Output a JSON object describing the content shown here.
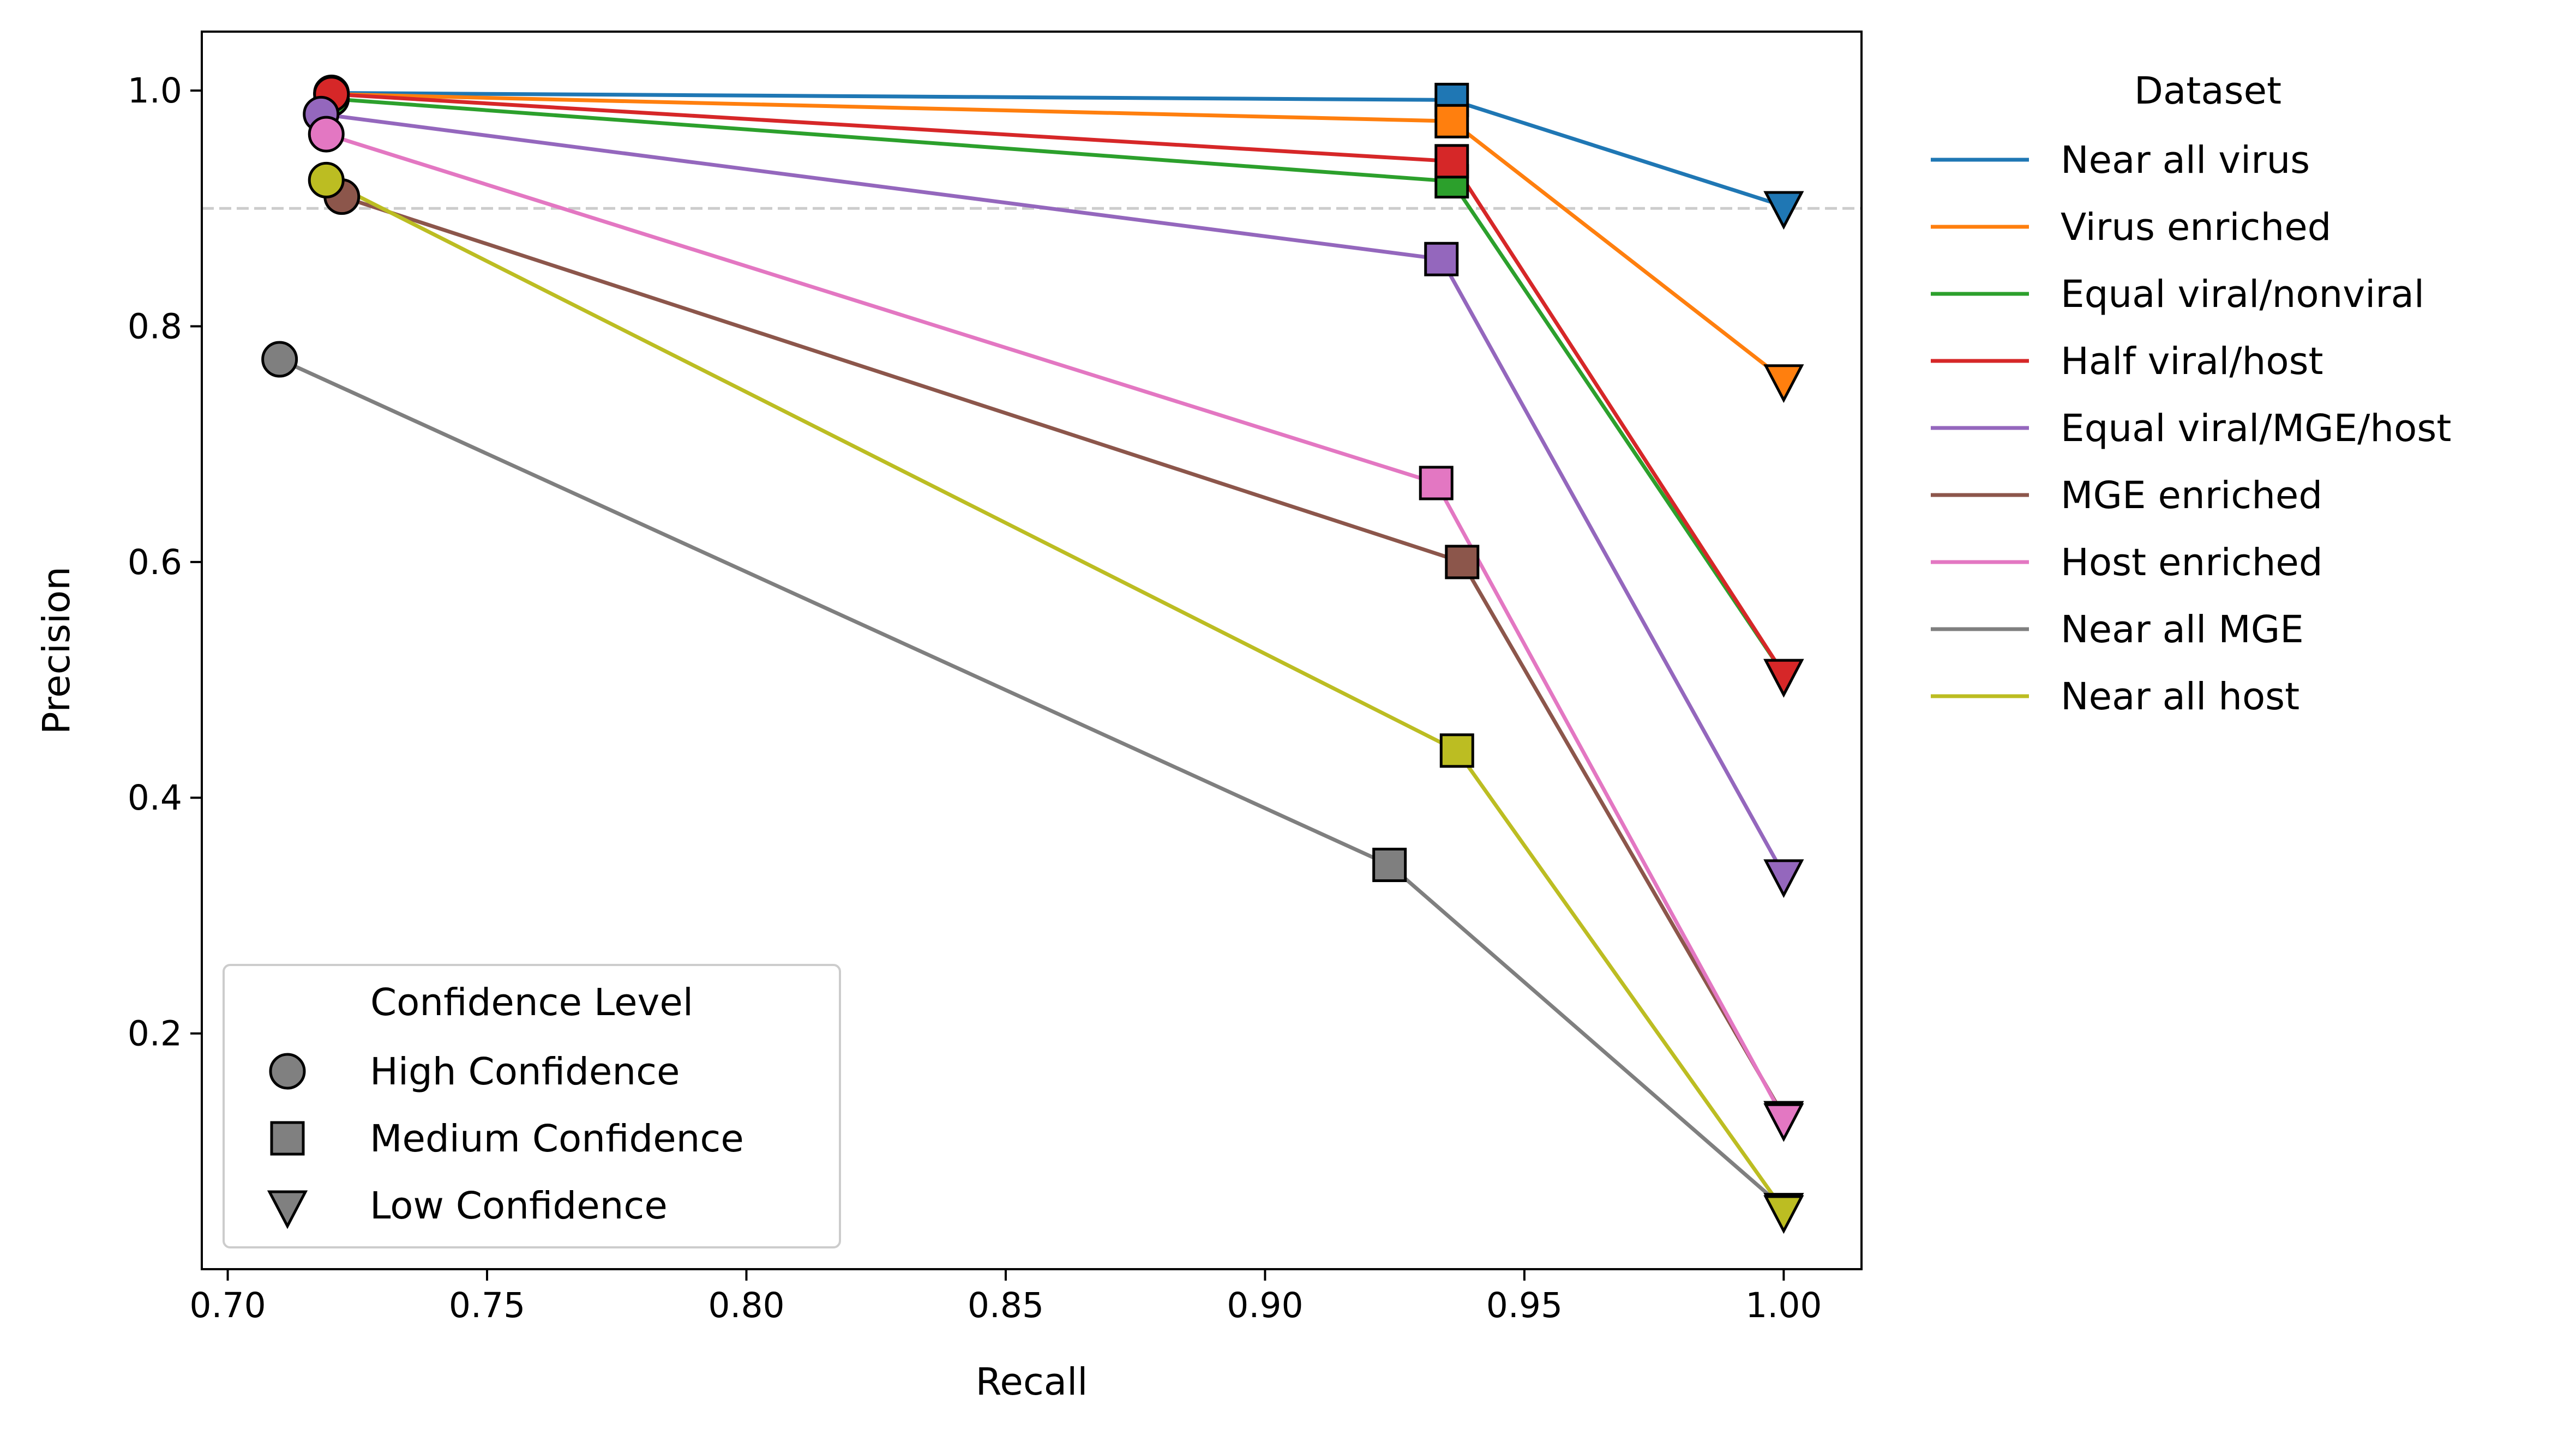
{
  "chart_data": {
    "type": "line",
    "xlabel": "Recall",
    "ylabel": "Precision",
    "xlim": [
      0.695,
      1.015
    ],
    "ylim": [
      0.0,
      1.05
    ],
    "xticks": [
      0.7,
      0.75,
      0.8,
      0.85,
      0.9,
      0.95,
      1.0
    ],
    "xtick_labels": [
      "0.70",
      "0.75",
      "0.80",
      "0.85",
      "0.90",
      "0.95",
      "1.00"
    ],
    "yticks": [
      0.2,
      0.4,
      0.6,
      0.8,
      1.0
    ],
    "ytick_labels": [
      "0.2",
      "0.4",
      "0.6",
      "0.8",
      "1.0"
    ],
    "reference_line": {
      "y": 0.9,
      "style": "dashed",
      "color": "#cccccc"
    },
    "grid": false,
    "point_order": [
      "High Confidence",
      "Medium Confidence",
      "Low Confidence"
    ],
    "series": [
      {
        "name": "Near all virus",
        "color": "#1f77b4",
        "x": [
          0.72,
          0.936,
          1.0
        ],
        "y": [
          0.998,
          0.992,
          0.902
        ]
      },
      {
        "name": "Virus enriched",
        "color": "#ff7f0e",
        "x": [
          0.72,
          0.936,
          1.0
        ],
        "y": [
          0.997,
          0.974,
          0.755
        ]
      },
      {
        "name": "Equal viral/nonviral",
        "color": "#2ca02c",
        "x": [
          0.72,
          0.936,
          1.0
        ],
        "y": [
          0.993,
          0.923,
          0.505
        ]
      },
      {
        "name": "Half viral/host",
        "color": "#d62728",
        "x": [
          0.72,
          0.936,
          1.0
        ],
        "y": [
          0.997,
          0.94,
          0.505
        ]
      },
      {
        "name": "Equal viral/MGE/host",
        "color": "#9467bd",
        "x": [
          0.718,
          0.934,
          1.0
        ],
        "y": [
          0.98,
          0.857,
          0.335
        ]
      },
      {
        "name": "MGE enriched",
        "color": "#8c564b",
        "x": [
          0.722,
          0.938,
          1.0
        ],
        "y": [
          0.91,
          0.6,
          0.13
        ]
      },
      {
        "name": "Host enriched",
        "color": "#e377c2",
        "x": [
          0.719,
          0.933,
          1.0
        ],
        "y": [
          0.963,
          0.667,
          0.128
        ]
      },
      {
        "name": "Near all MGE",
        "color": "#7f7f7f",
        "x": [
          0.71,
          0.924,
          1.0
        ],
        "y": [
          0.772,
          0.343,
          0.052
        ]
      },
      {
        "name": "Near all host",
        "color": "#bcbd22",
        "x": [
          0.719,
          0.937,
          1.0
        ],
        "y": [
          0.924,
          0.44,
          0.05
        ]
      }
    ],
    "legend_dataset": {
      "title": "Dataset",
      "placement": "outside-right-top"
    },
    "legend_confidence": {
      "title": "Confidence Level",
      "placement": "lower-left",
      "entries": [
        {
          "label": "High Confidence",
          "marker": "circle"
        },
        {
          "label": "Medium Confidence",
          "marker": "square"
        },
        {
          "label": "Low Confidence",
          "marker": "triangle-down"
        }
      ],
      "marker_color": "#808080"
    }
  }
}
